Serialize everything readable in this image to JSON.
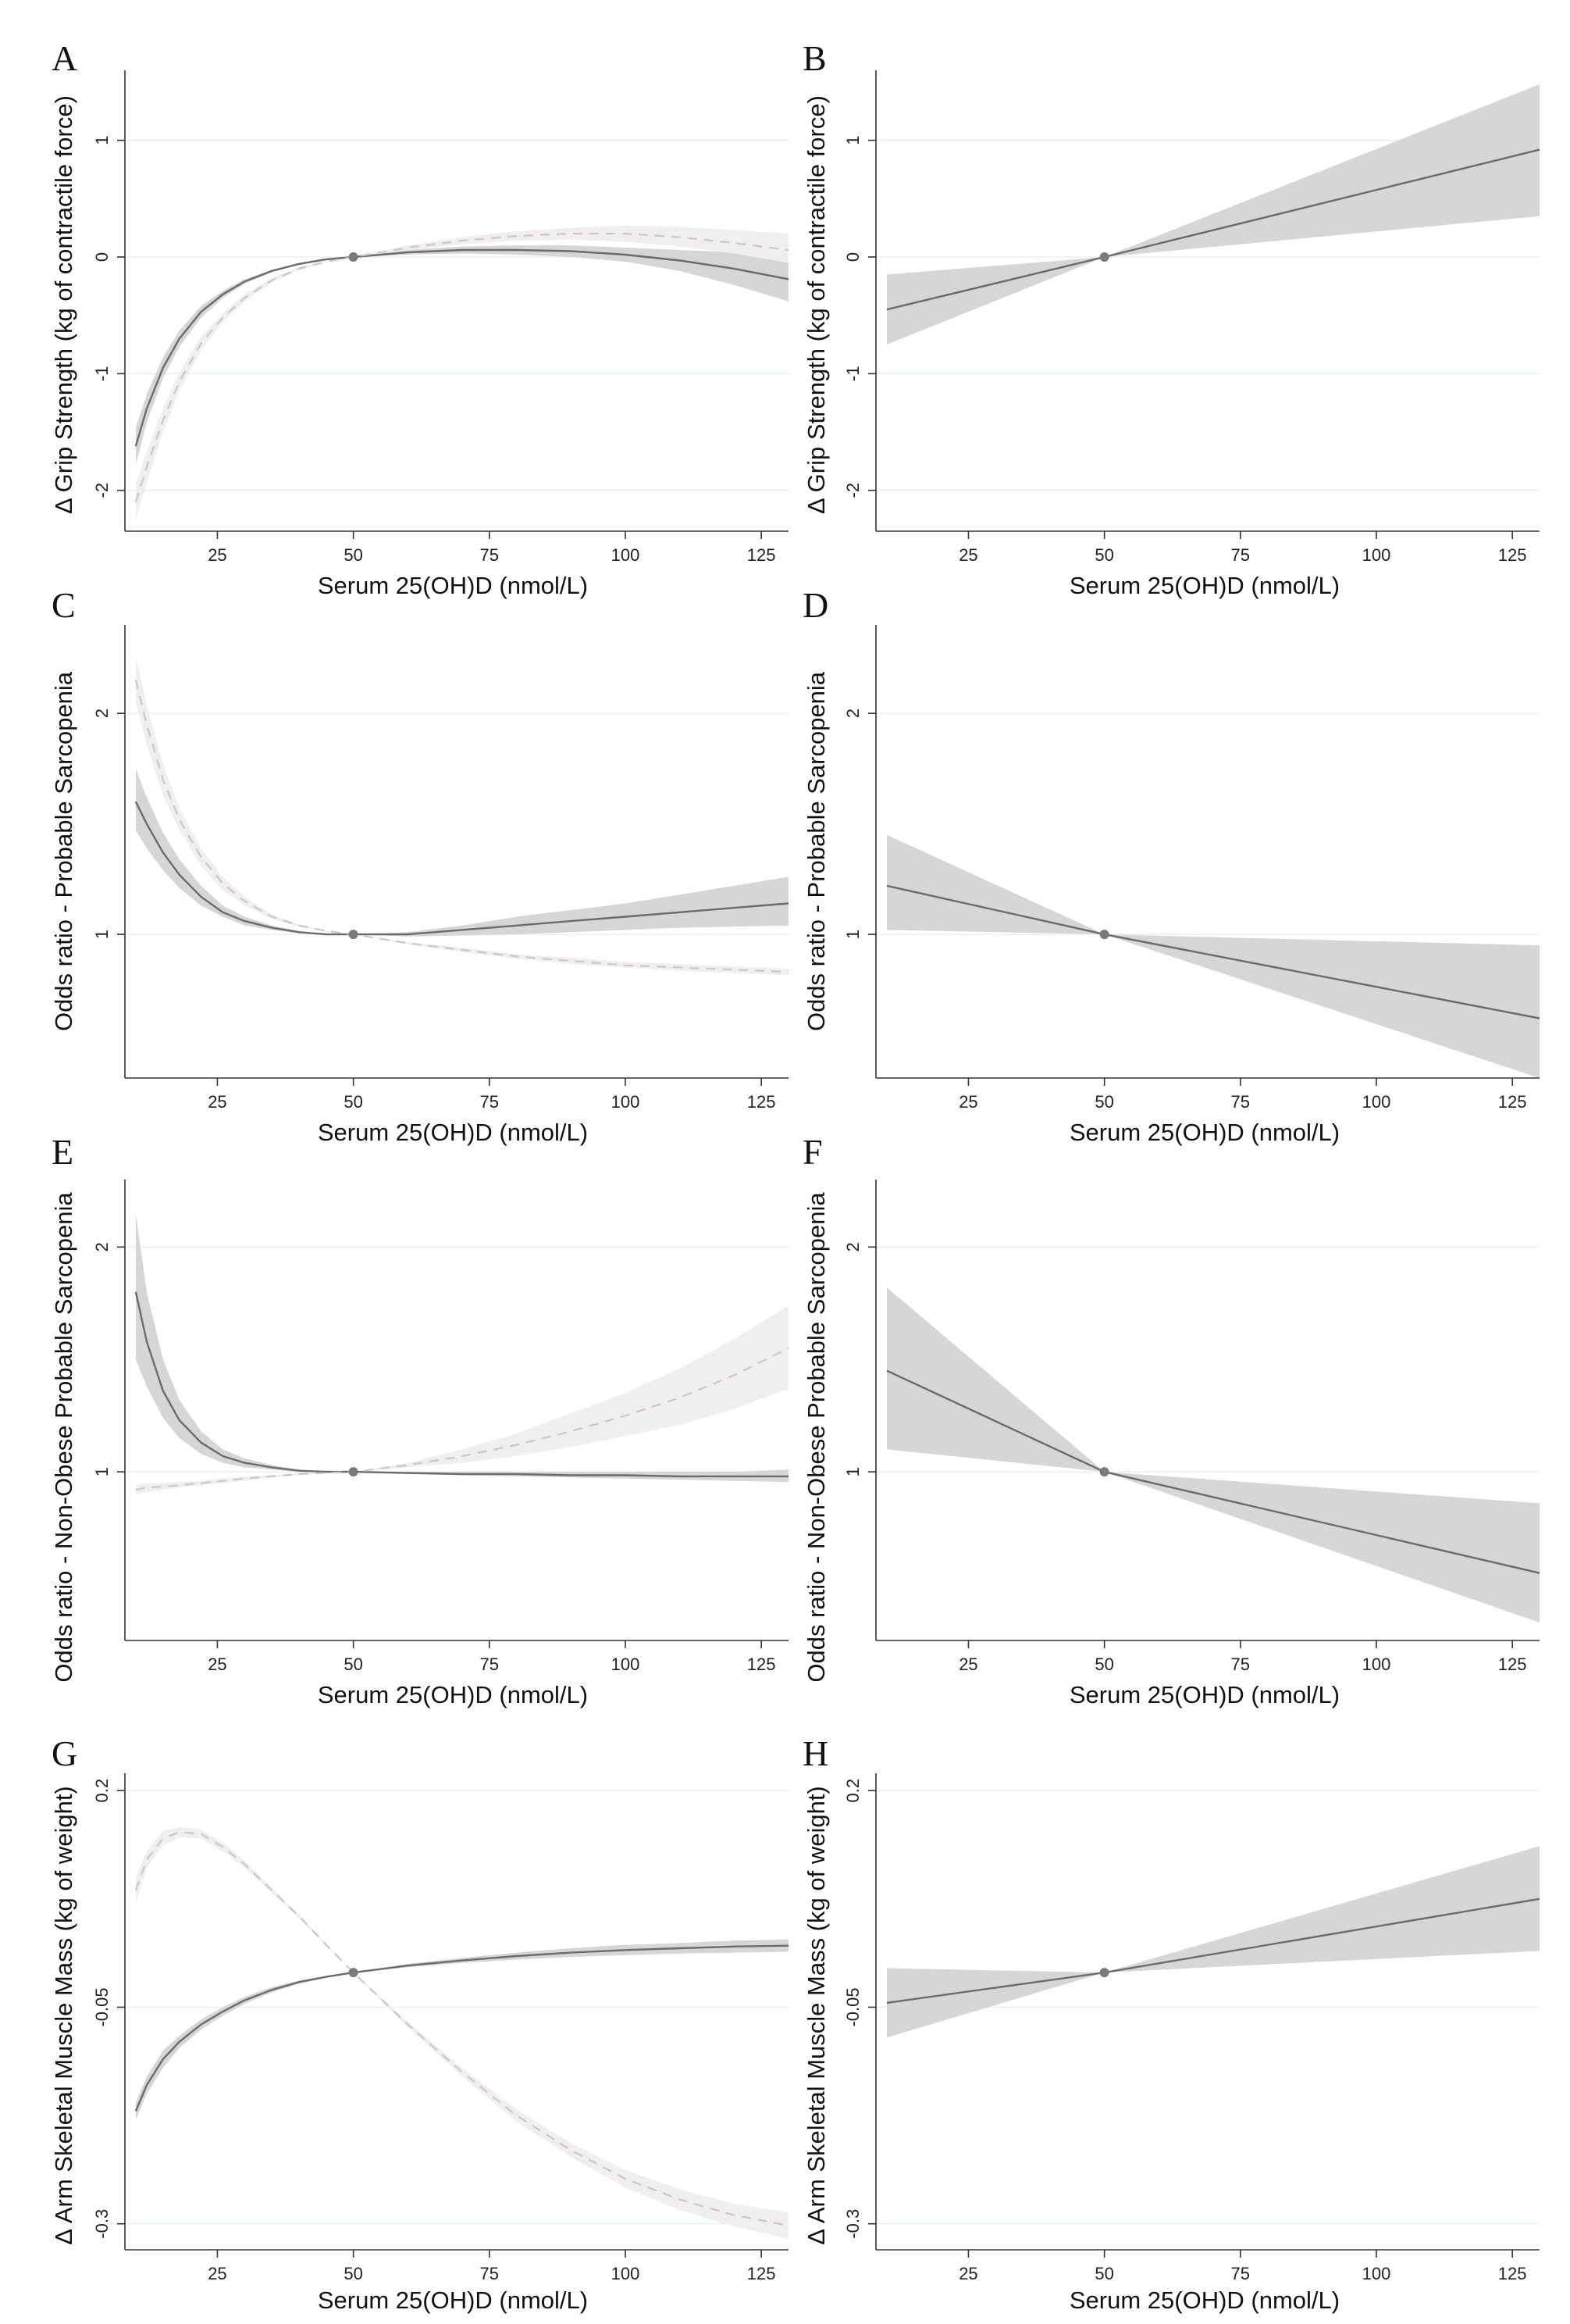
{
  "figure_panels": [
    {
      "letter": "A",
      "ylabel": "Δ Grip Strength (kg of contractile force)",
      "xlabel": "Serum 25(OH)D (nmol/L)",
      "xticks": [
        "25",
        "50",
        "75",
        "100",
        "125"
      ],
      "yticks": [
        "1",
        "0",
        "-1",
        "-2"
      ]
    },
    {
      "letter": "B",
      "ylabel": "Δ Grip Strength (kg of contractile force)",
      "xlabel": "Serum 25(OH)D (nmol/L)",
      "xticks": [
        "25",
        "50",
        "75",
        "100",
        "125"
      ],
      "yticks": [
        "1",
        "0",
        "-1",
        "-2"
      ]
    },
    {
      "letter": "C",
      "ylabel": "Odds ratio - Probable Sarcopenia",
      "xlabel": "Serum 25(OH)D (nmol/L)",
      "xticks": [
        "25",
        "50",
        "75",
        "100",
        "125"
      ],
      "yticks": [
        "2",
        "1"
      ]
    },
    {
      "letter": "D",
      "ylabel": "Odds ratio - Probable Sarcopenia",
      "xlabel": "Serum 25(OH)D (nmol/L)",
      "xticks": [
        "25",
        "50",
        "75",
        "100",
        "125"
      ],
      "yticks": [
        "2",
        "1"
      ]
    },
    {
      "letter": "E",
      "ylabel": "Odds ratio - Non-Obese Probable Sarcopenia",
      "xlabel": "Serum 25(OH)D (nmol/L)",
      "xticks": [
        "25",
        "50",
        "75",
        "100",
        "125"
      ],
      "yticks": [
        "2",
        "1"
      ]
    },
    {
      "letter": "F",
      "ylabel": "Odds ratio - Non-Obese Probable Sarcopenia",
      "xlabel": "Serum 25(OH)D (nmol/L)",
      "xticks": [
        "25",
        "50",
        "75",
        "100",
        "125"
      ],
      "yticks": [
        "2",
        "1"
      ]
    },
    {
      "letter": "G",
      "ylabel": "Δ Arm Skeletal Muscle Mass (kg of weight)",
      "xlabel": "Serum 25(OH)D (nmol/L)",
      "xticks": [
        "25",
        "50",
        "75",
        "100",
        "125"
      ],
      "yticks": [
        "0.2",
        "-0.05",
        "-0.3"
      ]
    },
    {
      "letter": "H",
      "ylabel": "Δ Arm Skeletal Muscle Mass (kg of weight)",
      "xlabel": "Serum 25(OH)D (nmol/L)",
      "xticks": [
        "25",
        "50",
        "75",
        "100",
        "125"
      ],
      "yticks": [
        "0.2",
        "-0.05",
        "-0.3"
      ]
    }
  ],
  "chart_data": [
    {
      "panel": "A",
      "type": "line",
      "xlim": [
        8,
        130
      ],
      "ylim": [
        -2.35,
        1.6
      ],
      "yticks": [
        1,
        0,
        -1,
        -2
      ],
      "xticks": [
        25,
        50,
        75,
        100,
        125
      ],
      "reference_point": [
        50,
        0
      ],
      "series": [
        {
          "name": "solid",
          "style": "solid",
          "x": [
            10,
            12,
            15,
            18,
            22,
            26,
            30,
            35,
            40,
            45,
            50,
            60,
            70,
            80,
            90,
            100,
            110,
            120,
            130
          ],
          "y": [
            -1.62,
            -1.3,
            -0.95,
            -0.7,
            -0.47,
            -0.32,
            -0.21,
            -0.12,
            -0.06,
            -0.02,
            0,
            0.04,
            0.06,
            0.06,
            0.05,
            0.02,
            -0.03,
            -0.1,
            -0.19
          ],
          "lower": [
            -1.78,
            -1.42,
            -1.04,
            -0.77,
            -0.52,
            -0.35,
            -0.23,
            -0.13,
            -0.065,
            -0.022,
            0,
            0.02,
            0.03,
            0.02,
            0,
            -0.04,
            -0.12,
            -0.24,
            -0.38
          ],
          "upper": [
            -1.46,
            -1.18,
            -0.86,
            -0.63,
            -0.42,
            -0.29,
            -0.19,
            -0.11,
            -0.055,
            -0.018,
            0,
            0.06,
            0.09,
            0.1,
            0.1,
            0.08,
            0.06,
            0.04,
            0.02
          ]
        },
        {
          "name": "dashed",
          "style": "dashed",
          "x": [
            10,
            12,
            15,
            18,
            22,
            26,
            30,
            35,
            40,
            45,
            50,
            60,
            70,
            80,
            90,
            100,
            110,
            120,
            130
          ],
          "y": [
            -2.1,
            -1.8,
            -1.4,
            -1.07,
            -0.74,
            -0.52,
            -0.35,
            -0.2,
            -0.1,
            -0.04,
            0,
            0.08,
            0.14,
            0.18,
            0.2,
            0.2,
            0.17,
            0.12,
            0.06
          ],
          "lower": [
            -2.25,
            -1.93,
            -1.5,
            -1.15,
            -0.8,
            -0.56,
            -0.38,
            -0.22,
            -0.11,
            -0.045,
            0,
            0.06,
            0.11,
            0.14,
            0.15,
            0.13,
            0.09,
            0.03,
            -0.05
          ],
          "upper": [
            -1.95,
            -1.67,
            -1.3,
            -0.99,
            -0.68,
            -0.48,
            -0.32,
            -0.18,
            -0.09,
            -0.035,
            0,
            0.1,
            0.17,
            0.22,
            0.25,
            0.27,
            0.26,
            0.23,
            0.2
          ]
        }
      ]
    },
    {
      "panel": "B",
      "type": "line",
      "xlim": [
        8,
        130
      ],
      "ylim": [
        -2.35,
        1.6
      ],
      "yticks": [
        1,
        0,
        -1,
        -2
      ],
      "xticks": [
        25,
        50,
        75,
        100,
        125
      ],
      "reference_point": [
        50,
        0
      ],
      "series": [
        {
          "name": "solid",
          "style": "solid",
          "x": [
            10,
            50,
            130
          ],
          "y": [
            -0.45,
            0,
            0.92
          ],
          "lower": [
            -0.75,
            0,
            0.35
          ],
          "upper": [
            -0.15,
            0,
            1.48
          ]
        }
      ]
    },
    {
      "panel": "C",
      "type": "line",
      "xlim": [
        8,
        130
      ],
      "ylim": [
        0.35,
        2.4
      ],
      "yticks": [
        2,
        1
      ],
      "xticks": [
        25,
        50,
        75,
        100,
        125
      ],
      "reference_point": [
        50,
        1
      ],
      "series": [
        {
          "name": "solid",
          "style": "solid",
          "x": [
            10,
            12,
            15,
            18,
            22,
            26,
            30,
            35,
            40,
            45,
            50,
            60,
            70,
            80,
            90,
            100,
            110,
            120,
            130
          ],
          "y": [
            1.6,
            1.5,
            1.37,
            1.27,
            1.17,
            1.1,
            1.06,
            1.03,
            1.01,
            1.0,
            1.0,
            1.0,
            1.02,
            1.04,
            1.06,
            1.08,
            1.1,
            1.12,
            1.14
          ],
          "lower": [
            1.47,
            1.39,
            1.29,
            1.21,
            1.13,
            1.08,
            1.04,
            1.02,
            1.005,
            1.0,
            1.0,
            0.99,
            0.995,
            1.0,
            1.01,
            1.02,
            1.03,
            1.035,
            1.04
          ],
          "upper": [
            1.75,
            1.62,
            1.46,
            1.34,
            1.22,
            1.13,
            1.08,
            1.04,
            1.015,
            1.0,
            1.0,
            1.01,
            1.04,
            1.08,
            1.11,
            1.14,
            1.18,
            1.22,
            1.26
          ]
        },
        {
          "name": "dashed",
          "style": "dashed",
          "x": [
            10,
            12,
            15,
            18,
            22,
            26,
            30,
            35,
            40,
            45,
            50,
            60,
            70,
            80,
            90,
            100,
            110,
            120,
            130
          ],
          "y": [
            2.15,
            1.95,
            1.7,
            1.52,
            1.35,
            1.23,
            1.15,
            1.08,
            1.04,
            1.015,
            1.0,
            0.96,
            0.93,
            0.9,
            0.88,
            0.86,
            0.85,
            0.84,
            0.83
          ],
          "lower": [
            2.05,
            1.86,
            1.63,
            1.47,
            1.31,
            1.2,
            1.13,
            1.07,
            1.035,
            1.012,
            1.0,
            0.955,
            0.92,
            0.89,
            0.865,
            0.85,
            0.835,
            0.825,
            0.815
          ],
          "upper": [
            2.26,
            2.04,
            1.77,
            1.57,
            1.39,
            1.26,
            1.17,
            1.09,
            1.045,
            1.018,
            1.0,
            0.965,
            0.94,
            0.91,
            0.895,
            0.875,
            0.865,
            0.855,
            0.845
          ]
        }
      ]
    },
    {
      "panel": "D",
      "type": "line",
      "xlim": [
        8,
        130
      ],
      "ylim": [
        0.35,
        2.4
      ],
      "yticks": [
        2,
        1
      ],
      "xticks": [
        25,
        50,
        75,
        100,
        125
      ],
      "reference_point": [
        50,
        1
      ],
      "series": [
        {
          "name": "solid",
          "style": "solid",
          "x": [
            10,
            50,
            130
          ],
          "y": [
            1.22,
            1.0,
            0.62
          ],
          "lower": [
            1.02,
            1.0,
            0.35
          ],
          "upper": [
            1.45,
            1.0,
            0.95
          ]
        }
      ]
    },
    {
      "panel": "E",
      "type": "line",
      "xlim": [
        8,
        130
      ],
      "ylim": [
        0.25,
        2.3
      ],
      "yticks": [
        2,
        1
      ],
      "xticks": [
        25,
        50,
        75,
        100,
        125
      ],
      "reference_point": [
        50,
        1
      ],
      "series": [
        {
          "name": "solid",
          "style": "solid",
          "x": [
            10,
            12,
            15,
            18,
            22,
            26,
            30,
            35,
            40,
            45,
            50,
            60,
            70,
            80,
            90,
            100,
            110,
            120,
            130
          ],
          "y": [
            1.8,
            1.58,
            1.36,
            1.23,
            1.13,
            1.07,
            1.04,
            1.02,
            1.005,
            1.0,
            1.0,
            0.995,
            0.99,
            0.99,
            0.985,
            0.985,
            0.98,
            0.98,
            0.98
          ],
          "lower": [
            1.5,
            1.38,
            1.24,
            1.15,
            1.08,
            1.04,
            1.02,
            1.01,
            1.0,
            1.0,
            1.0,
            0.99,
            0.985,
            0.98,
            0.975,
            0.97,
            0.965,
            0.96,
            0.955
          ],
          "upper": [
            2.15,
            1.8,
            1.5,
            1.32,
            1.18,
            1.1,
            1.06,
            1.03,
            1.01,
            1.0,
            1.0,
            1.0,
            1.0,
            1.0,
            1.0,
            1.0,
            1.0,
            1.0,
            1.01
          ]
        },
        {
          "name": "dashed",
          "style": "dashed",
          "x": [
            10,
            12,
            15,
            18,
            22,
            26,
            30,
            35,
            40,
            45,
            50,
            60,
            70,
            80,
            90,
            100,
            110,
            120,
            130
          ],
          "y": [
            0.92,
            0.93,
            0.935,
            0.94,
            0.95,
            0.96,
            0.97,
            0.98,
            0.99,
            0.995,
            1.0,
            1.03,
            1.07,
            1.12,
            1.18,
            1.25,
            1.33,
            1.43,
            1.55
          ],
          "lower": [
            0.9,
            0.91,
            0.92,
            0.93,
            0.94,
            0.95,
            0.96,
            0.975,
            0.985,
            0.993,
            1.0,
            1.02,
            1.04,
            1.07,
            1.11,
            1.16,
            1.21,
            1.28,
            1.37
          ],
          "upper": [
            0.94,
            0.95,
            0.95,
            0.955,
            0.96,
            0.97,
            0.98,
            0.985,
            0.995,
            0.997,
            1.0,
            1.04,
            1.1,
            1.17,
            1.26,
            1.35,
            1.46,
            1.59,
            1.74
          ]
        }
      ]
    },
    {
      "panel": "F",
      "type": "line",
      "xlim": [
        8,
        130
      ],
      "ylim": [
        0.25,
        2.3
      ],
      "yticks": [
        2,
        1
      ],
      "xticks": [
        25,
        50,
        75,
        100,
        125
      ],
      "reference_point": [
        50,
        1
      ],
      "series": [
        {
          "name": "solid",
          "style": "solid",
          "x": [
            10,
            50,
            130
          ],
          "y": [
            1.45,
            1.0,
            0.55
          ],
          "lower": [
            1.1,
            1.0,
            0.33
          ],
          "upper": [
            1.82,
            1.0,
            0.86
          ]
        }
      ]
    },
    {
      "panel": "G",
      "type": "line",
      "xlim": [
        8,
        130
      ],
      "ylim": [
        -0.33,
        0.22
      ],
      "yticks": [
        0.2,
        -0.05,
        -0.3
      ],
      "xticks": [
        25,
        50,
        75,
        100,
        125
      ],
      "reference_point": [
        50,
        -0.01
      ],
      "series": [
        {
          "name": "solid",
          "style": "solid",
          "x": [
            10,
            12,
            15,
            18,
            22,
            26,
            30,
            35,
            40,
            45,
            50,
            60,
            70,
            80,
            90,
            100,
            110,
            120,
            130
          ],
          "y": [
            -0.17,
            -0.14,
            -0.11,
            -0.09,
            -0.07,
            -0.055,
            -0.042,
            -0.03,
            -0.021,
            -0.015,
            -0.01,
            -0.002,
            0.004,
            0.009,
            0.013,
            0.016,
            0.018,
            0.02,
            0.021
          ],
          "lower": [
            -0.18,
            -0.15,
            -0.12,
            -0.097,
            -0.076,
            -0.06,
            -0.046,
            -0.033,
            -0.023,
            -0.016,
            -0.01,
            -0.004,
            0.001,
            0.005,
            0.008,
            0.01,
            0.012,
            0.013,
            0.014
          ],
          "upper": [
            -0.16,
            -0.13,
            -0.1,
            -0.083,
            -0.064,
            -0.05,
            -0.038,
            -0.027,
            -0.019,
            -0.014,
            -0.01,
            0.0,
            0.007,
            0.013,
            0.018,
            0.022,
            0.024,
            0.027,
            0.028
          ]
        },
        {
          "name": "dashed",
          "style": "dashed",
          "x": [
            10,
            12,
            15,
            18,
            22,
            26,
            30,
            35,
            40,
            45,
            50,
            60,
            70,
            80,
            90,
            100,
            110,
            120,
            130
          ],
          "y": [
            0.085,
            0.12,
            0.145,
            0.152,
            0.15,
            0.135,
            0.115,
            0.085,
            0.055,
            0.022,
            -0.01,
            -0.07,
            -0.125,
            -0.175,
            -0.215,
            -0.248,
            -0.272,
            -0.29,
            -0.302
          ],
          "lower": [
            0.07,
            0.11,
            0.137,
            0.146,
            0.145,
            0.13,
            0.111,
            0.082,
            0.053,
            0.021,
            -0.01,
            -0.073,
            -0.13,
            -0.182,
            -0.223,
            -0.258,
            -0.284,
            -0.303,
            -0.317
          ],
          "upper": [
            0.1,
            0.13,
            0.153,
            0.158,
            0.155,
            0.14,
            0.119,
            0.088,
            0.057,
            0.023,
            -0.01,
            -0.067,
            -0.12,
            -0.168,
            -0.207,
            -0.238,
            -0.26,
            -0.277,
            -0.287
          ]
        }
      ]
    },
    {
      "panel": "H",
      "type": "line",
      "xlim": [
        8,
        130
      ],
      "ylim": [
        -0.33,
        0.22
      ],
      "yticks": [
        0.2,
        -0.05,
        -0.3
      ],
      "xticks": [
        25,
        50,
        75,
        100,
        125
      ],
      "reference_point": [
        50,
        -0.01
      ],
      "series": [
        {
          "name": "solid",
          "style": "solid",
          "x": [
            10,
            50,
            130
          ],
          "y": [
            -0.045,
            -0.01,
            0.075
          ],
          "lower": [
            -0.085,
            -0.01,
            0.015
          ],
          "upper": [
            -0.005,
            -0.01,
            0.136
          ]
        }
      ]
    }
  ],
  "colors": {
    "ci_dark": "#d6d6d6",
    "ci_light": "#efefef",
    "line_solid": "#6b6b6b",
    "line_dashed": "#cfc4c7",
    "point": "#7a7a7a"
  }
}
